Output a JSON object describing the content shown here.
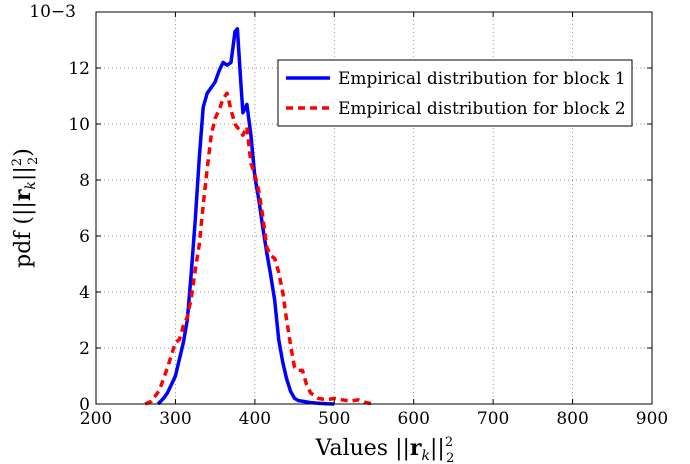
{
  "chart_data": {
    "type": "line",
    "title": "",
    "xlabel": "Values ||r_k||_2^2",
    "ylabel": "pdf (||r_k||_2^2)",
    "y_exponent_label": "10−3",
    "xlim": [
      200,
      900
    ],
    "ylim": [
      0,
      14
    ],
    "xticks": [
      200,
      300,
      400,
      500,
      600,
      700,
      800,
      900
    ],
    "yticks": [
      0,
      2,
      4,
      6,
      8,
      10,
      12
    ],
    "grid": true,
    "legend_position": "top-right",
    "series": [
      {
        "name": "Empirical distribution for block 1",
        "color": "#0000ff",
        "style": "solid",
        "x": [
          278,
          285,
          290,
          295,
          300,
          305,
          310,
          315,
          320,
          325,
          330,
          335,
          340,
          345,
          350,
          355,
          360,
          365,
          370,
          375,
          378,
          382,
          385,
          390,
          395,
          400,
          405,
          410,
          415,
          420,
          425,
          430,
          435,
          440,
          445,
          450,
          455,
          460,
          470,
          480,
          490,
          500
        ],
        "y": [
          0,
          0.2,
          0.4,
          0.7,
          1.0,
          1.6,
          2.2,
          3.0,
          4.7,
          6.6,
          8.8,
          10.6,
          11.1,
          11.3,
          11.5,
          11.9,
          12.2,
          12.1,
          12.2,
          13.3,
          13.4,
          11.6,
          10.4,
          10.7,
          9.6,
          8.1,
          7.3,
          6.3,
          5.4,
          4.6,
          3.7,
          2.3,
          1.5,
          0.9,
          0.45,
          0.2,
          0.12,
          0.1,
          0.05,
          0.03,
          0.01,
          0
        ]
      },
      {
        "name": "Empirical distribution for block 2",
        "color": "#ff0000",
        "style": "dashed",
        "x": [
          262,
          270,
          280,
          290,
          300,
          305,
          310,
          315,
          320,
          325,
          330,
          335,
          340,
          345,
          350,
          355,
          360,
          365,
          370,
          375,
          380,
          385,
          390,
          395,
          400,
          405,
          410,
          415,
          420,
          425,
          430,
          435,
          440,
          445,
          450,
          455,
          460,
          465,
          470,
          480,
          490,
          500,
          510,
          520,
          530,
          540,
          550
        ],
        "y": [
          0,
          0.1,
          0.5,
          1.3,
          2.2,
          2.3,
          2.8,
          3.1,
          3.8,
          4.8,
          5.7,
          7.1,
          8.4,
          9.6,
          10.2,
          10.5,
          10.9,
          11.1,
          10.5,
          10.0,
          9.8,
          9.6,
          9.9,
          8.6,
          8.2,
          7.6,
          6.7,
          5.6,
          5.3,
          5.2,
          4.7,
          4.0,
          3.0,
          2.1,
          1.3,
          1.2,
          1.2,
          0.7,
          0.4,
          0.2,
          0.15,
          0.2,
          0.15,
          0.1,
          0.15,
          0.05,
          0
        ]
      }
    ]
  }
}
